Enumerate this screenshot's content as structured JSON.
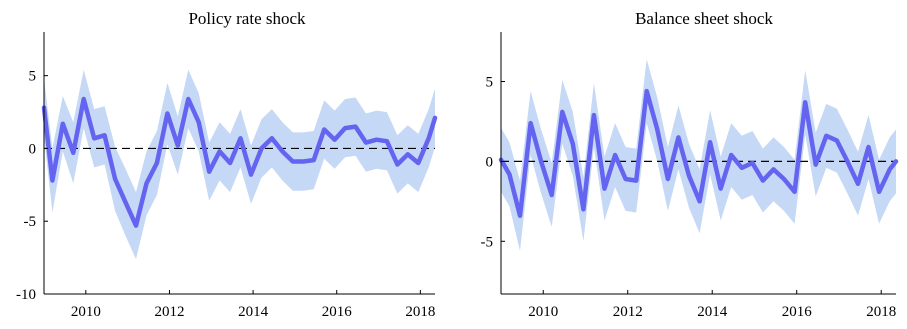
{
  "chart_data": [
    {
      "type": "line",
      "title": "Policy rate shock",
      "xlabel": "",
      "ylabel": "",
      "xlim": [
        2009.0,
        2018.35
      ],
      "ylim": [
        -10,
        8
      ],
      "xticks": [
        2010,
        2012,
        2014,
        2016,
        2018
      ],
      "yticks": [
        -10,
        -5,
        0,
        5
      ],
      "grid": false,
      "zero_line": {
        "style": "dashed",
        "value": 0
      },
      "series": [
        {
          "color": "#6464f0",
          "band_color": "#c5d8f5",
          "x": [
            2009.0,
            2009.2,
            2009.45,
            2009.7,
            2009.95,
            2010.2,
            2010.45,
            2010.7,
            2010.95,
            2011.2,
            2011.45,
            2011.7,
            2011.95,
            2012.2,
            2012.45,
            2012.7,
            2012.95,
            2013.2,
            2013.45,
            2013.7,
            2013.95,
            2014.2,
            2014.45,
            2014.7,
            2014.95,
            2015.2,
            2015.45,
            2015.7,
            2015.95,
            2016.2,
            2016.45,
            2016.7,
            2016.95,
            2017.2,
            2017.45,
            2017.7,
            2017.95,
            2018.2,
            2018.35
          ],
          "values": [
            2.8,
            -2.2,
            1.7,
            -0.3,
            3.4,
            0.7,
            0.9,
            -2.1,
            -3.7,
            -5.3,
            -2.4,
            -1.0,
            2.4,
            0.2,
            3.4,
            1.8,
            -1.6,
            -0.2,
            -1.0,
            0.7,
            -1.8,
            0.0,
            0.7,
            -0.2,
            -0.9,
            -0.9,
            -0.8,
            1.3,
            0.6,
            1.4,
            1.5,
            0.4,
            0.6,
            0.5,
            -1.1,
            -0.4,
            -1.0,
            0.7,
            2.1
          ],
          "lower": [
            0.8,
            -4.4,
            -0.2,
            -2.4,
            1.4,
            -1.3,
            -1.1,
            -4.3,
            -6.0,
            -7.6,
            -4.6,
            -3.2,
            0.3,
            -1.8,
            1.4,
            -0.2,
            -3.6,
            -2.2,
            -3.0,
            -1.3,
            -3.8,
            -2.0,
            -1.3,
            -2.2,
            -2.9,
            -2.9,
            -2.8,
            -0.7,
            -1.4,
            -0.6,
            -0.5,
            -1.6,
            -1.4,
            -1.5,
            -3.1,
            -2.4,
            -3.0,
            -1.3,
            0.1
          ],
          "upper": [
            4.8,
            0.0,
            3.6,
            1.8,
            5.4,
            2.7,
            2.9,
            0.1,
            -1.4,
            -3.0,
            -0.2,
            1.2,
            4.5,
            2.2,
            5.4,
            3.8,
            0.4,
            1.8,
            1.0,
            2.7,
            0.2,
            2.0,
            2.7,
            1.8,
            1.1,
            1.1,
            1.2,
            3.3,
            2.6,
            3.4,
            3.5,
            2.4,
            2.6,
            2.5,
            0.9,
            1.6,
            1.0,
            2.7,
            4.1
          ]
        }
      ]
    },
    {
      "type": "line",
      "title": "Balance sheet shock",
      "xlabel": "",
      "ylabel": "",
      "xlim": [
        2009.0,
        2018.35
      ],
      "ylim": [
        -8.3,
        8.1
      ],
      "xticks": [
        2010,
        2012,
        2014,
        2016,
        2018
      ],
      "yticks": [
        -5,
        0,
        5
      ],
      "grid": false,
      "zero_line": {
        "style": "dashed",
        "value": 0
      },
      "series": [
        {
          "color": "#6464f0",
          "band_color": "#c5d8f5",
          "x": [
            2009.0,
            2009.2,
            2009.45,
            2009.7,
            2009.95,
            2010.2,
            2010.45,
            2010.7,
            2010.95,
            2011.2,
            2011.45,
            2011.7,
            2011.95,
            2012.2,
            2012.45,
            2012.7,
            2012.95,
            2013.2,
            2013.45,
            2013.7,
            2013.95,
            2014.2,
            2014.45,
            2014.7,
            2014.95,
            2015.2,
            2015.45,
            2015.7,
            2015.95,
            2016.2,
            2016.45,
            2016.7,
            2016.95,
            2017.2,
            2017.45,
            2017.7,
            2017.95,
            2018.2,
            2018.35
          ],
          "values": [
            0.1,
            -0.8,
            -3.4,
            2.4,
            0.0,
            -2.1,
            3.1,
            1.1,
            -3.0,
            2.9,
            -1.7,
            0.4,
            -1.1,
            -1.2,
            4.4,
            2.0,
            -1.1,
            1.5,
            -0.9,
            -2.5,
            1.2,
            -1.7,
            0.4,
            -0.4,
            -0.1,
            -1.2,
            -0.5,
            -1.1,
            -1.9,
            3.7,
            -0.2,
            1.6,
            1.3,
            0.0,
            -1.4,
            0.9,
            -1.9,
            -0.5,
            0.0
          ],
          "lower": [
            -1.9,
            -2.8,
            -5.6,
            0.4,
            -2.0,
            -4.1,
            1.1,
            -0.9,
            -5.0,
            0.9,
            -3.7,
            -1.6,
            -3.1,
            -3.2,
            2.4,
            0.0,
            -3.1,
            -0.5,
            -2.9,
            -4.5,
            -0.8,
            -3.7,
            -1.6,
            -2.4,
            -2.1,
            -3.2,
            -2.5,
            -3.1,
            -3.9,
            1.7,
            -2.2,
            -0.4,
            -0.7,
            -2.0,
            -3.4,
            -1.1,
            -3.9,
            -2.5,
            -2.0
          ],
          "upper": [
            2.1,
            1.2,
            -1.2,
            4.4,
            2.0,
            -0.1,
            5.1,
            3.1,
            -1.0,
            4.9,
            0.3,
            2.4,
            0.9,
            0.8,
            6.4,
            4.0,
            0.9,
            3.5,
            1.1,
            -0.5,
            3.2,
            0.3,
            2.4,
            1.6,
            1.9,
            0.8,
            1.5,
            0.9,
            0.1,
            5.7,
            1.8,
            3.6,
            3.3,
            2.0,
            0.6,
            2.9,
            0.1,
            1.5,
            2.0
          ]
        }
      ]
    }
  ]
}
